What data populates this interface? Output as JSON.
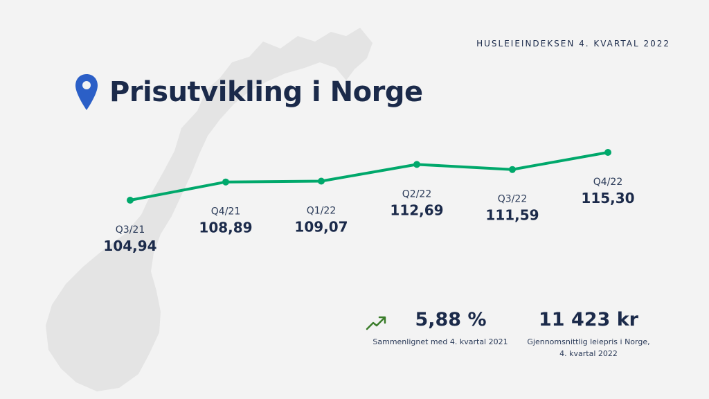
{
  "header": {
    "kicker": "HUSLEIEINDEKSEN 4. KVARTAL 2022",
    "title": "Prisutvikling i Norge",
    "title_icon": "location-pin-icon"
  },
  "colors": {
    "line": "#00a86b",
    "pin": "#2b5fc7",
    "text": "#1b2a4a",
    "map": "#e4e4e4",
    "trend_icon": "#3a7d2a"
  },
  "chart_data": {
    "type": "line",
    "categories": [
      "Q3/21",
      "Q4/21",
      "Q1/22",
      "Q2/22",
      "Q3/22",
      "Q4/22"
    ],
    "value_labels": [
      "104,94",
      "108,89",
      "109,07",
      "112,69",
      "111,59",
      "115,30"
    ],
    "series": [
      {
        "values": [
          104.94,
          108.89,
          109.07,
          112.69,
          111.59,
          115.3
        ]
      }
    ],
    "title": "",
    "xlabel": "",
    "ylabel": "",
    "grid": false,
    "legend": "none"
  },
  "stats": {
    "change": {
      "value": "5,88 %",
      "caption": "Sammenlignet med 4. kvartal 2021",
      "icon": "trending-up-icon"
    },
    "average_rent": {
      "value": "11 423 kr",
      "caption_line1": "Gjennomsnittlig leiepris i Norge,",
      "caption_line2": "4. kvartal 2022"
    }
  }
}
